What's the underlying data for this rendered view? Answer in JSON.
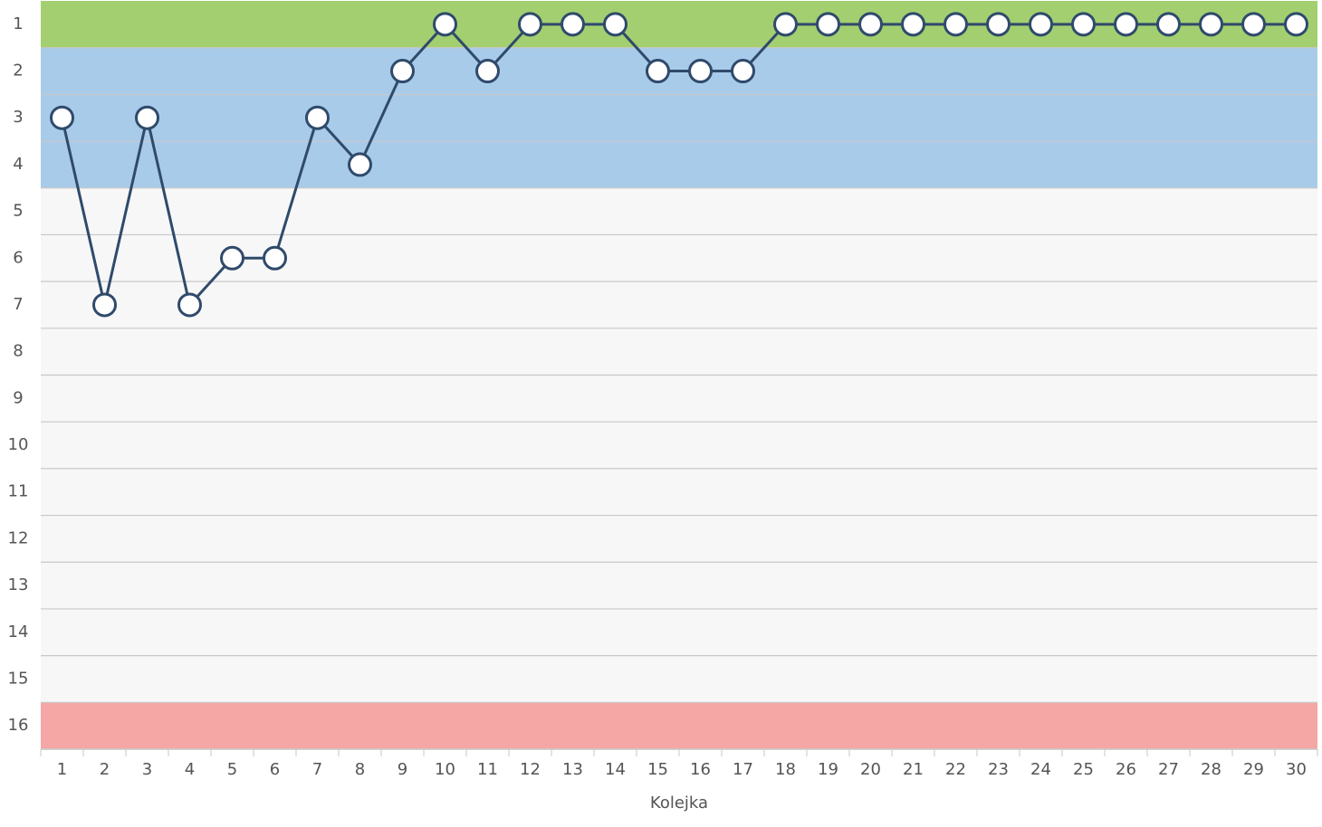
{
  "chart_data": {
    "type": "line",
    "x_label": "Kolejka",
    "categories": [
      "1",
      "2",
      "3",
      "4",
      "5",
      "6",
      "7",
      "8",
      "9",
      "10",
      "11",
      "12",
      "13",
      "14",
      "15",
      "16",
      "17",
      "18",
      "19",
      "20",
      "21",
      "22",
      "23",
      "24",
      "25",
      "26",
      "27",
      "28",
      "29",
      "30"
    ],
    "series": [
      {
        "color": "#2f4a6b",
        "values": [
          3,
          7,
          3,
          7,
          6,
          6,
          3,
          4,
          2,
          1,
          2,
          1,
          1,
          1,
          2,
          2,
          2,
          1,
          1,
          1,
          1,
          1,
          1,
          1,
          1,
          1,
          1,
          1,
          1,
          1
        ]
      }
    ],
    "ylim": [
      16.5,
      0.5
    ],
    "yticks": [
      1,
      2,
      3,
      4,
      5,
      6,
      7,
      8,
      9,
      10,
      11,
      12,
      13,
      14,
      15,
      16
    ],
    "bands": [
      {
        "from": 1,
        "to": 1,
        "color": "#a3cf70"
      },
      {
        "from": 2,
        "to": 4,
        "color": "#a9cbea"
      },
      {
        "from": 16,
        "to": 16,
        "color": "#f4a7a4"
      }
    ],
    "background": "#f7f7f7"
  }
}
